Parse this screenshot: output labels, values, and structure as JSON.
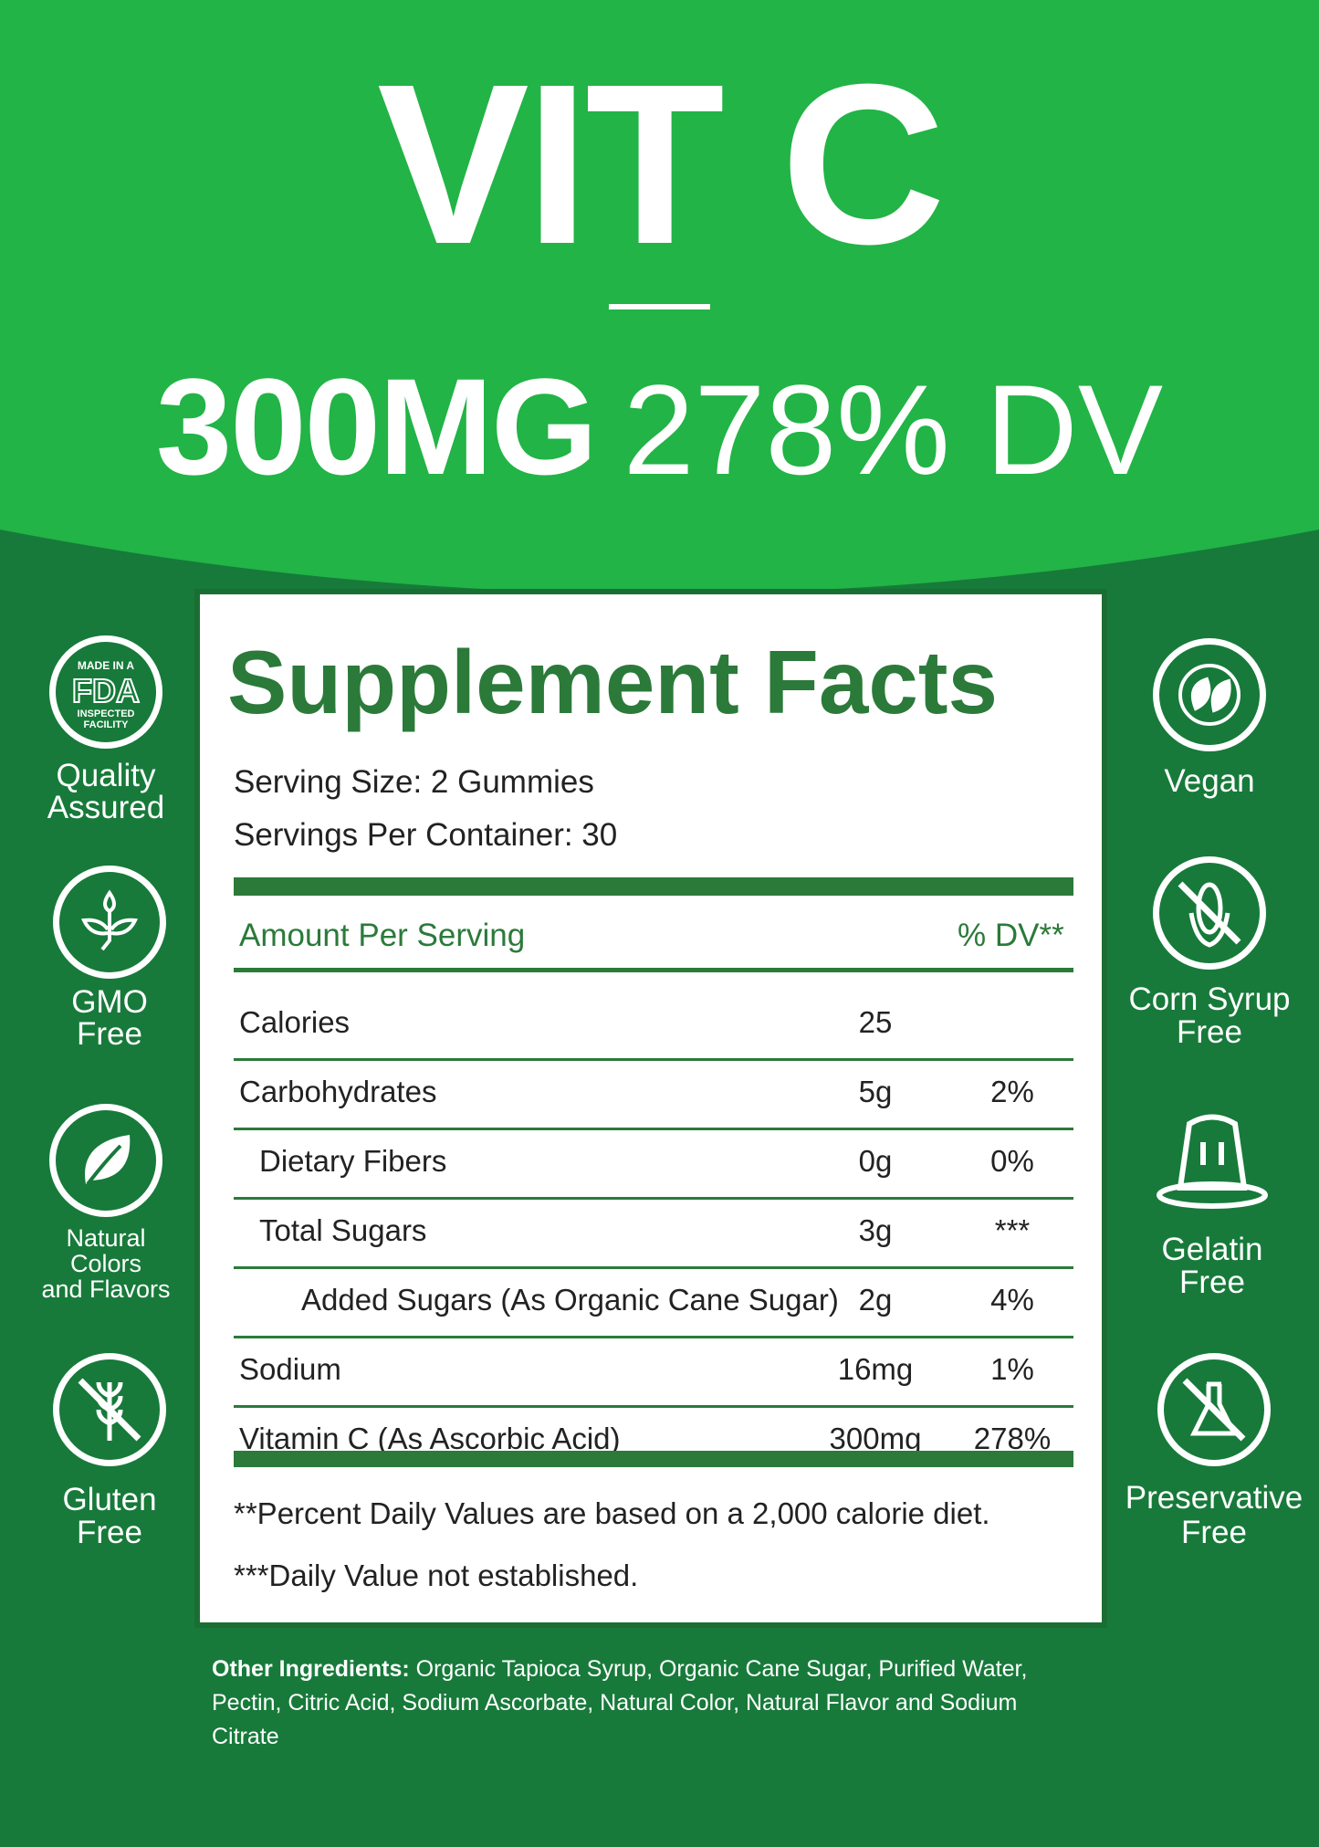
{
  "header": {
    "title": "VIT C",
    "dose": "300MG",
    "dv": "278% DV"
  },
  "colors": {
    "light_green": "#22b446",
    "dark_green": "#177a3a",
    "panel_green": "#2b7a3a"
  },
  "facts": {
    "title": "Supplement Facts",
    "serving_size": "Serving Size: 2 Gummies",
    "servings_per_container": "Servings Per Container: 30",
    "header_amount": "Amount Per Serving",
    "header_dv": "% DV**",
    "rows": [
      {
        "name": "Calories",
        "amount": "25",
        "dv": ""
      },
      {
        "name": "Carbohydrates",
        "amount": "5g",
        "dv": "2%"
      },
      {
        "name": "Dietary Fibers",
        "amount": "0g",
        "dv": "0%"
      },
      {
        "name": "Total Sugars",
        "amount": "3g",
        "dv": "***"
      },
      {
        "name": "Added Sugars (As Organic Cane Sugar)",
        "amount": "2g",
        "dv": "4%"
      },
      {
        "name": "Sodium",
        "amount": "16mg",
        "dv": "1%"
      },
      {
        "name": "Vitamin C (As Ascorbic Acid)",
        "amount": "300mg",
        "dv": "278%"
      }
    ],
    "footnote1": "**Percent Daily Values are based on a 2,000 calorie diet.",
    "footnote2": "***Daily Value not established."
  },
  "badges_left": [
    {
      "icon": "fda-badge-icon",
      "logo_text": "MADE IN A FDA INSPECTED FACILITY",
      "l1": "Quality",
      "l2": "Assured"
    },
    {
      "icon": "sprout-icon",
      "l1": "GMO",
      "l2": "Free"
    },
    {
      "icon": "leaf-icon",
      "l1": "Natural",
      "l2": "Colors",
      "l3": "and Flavors"
    },
    {
      "icon": "no-wheat-icon",
      "l1": "Gluten",
      "l2": "Free"
    }
  ],
  "badges_right": [
    {
      "icon": "vegan-leaves-icon",
      "l1": "Vegan"
    },
    {
      "icon": "no-corn-icon",
      "l1": "Corn Syrup",
      "l2": "Free"
    },
    {
      "icon": "jelly-icon",
      "l1": "Gelatin",
      "l2": "Free"
    },
    {
      "icon": "no-flask-icon",
      "l1": "Preservative",
      "l2": "Free"
    }
  ],
  "ingredients": {
    "label": "Other Ingredients:",
    "text": " Organic Tapioca Syrup, Organic Cane Sugar, Purified Water, Pectin, Citric Acid, Sodium Ascorbate, Natural Color, Natural Flavor and Sodium Citrate"
  }
}
